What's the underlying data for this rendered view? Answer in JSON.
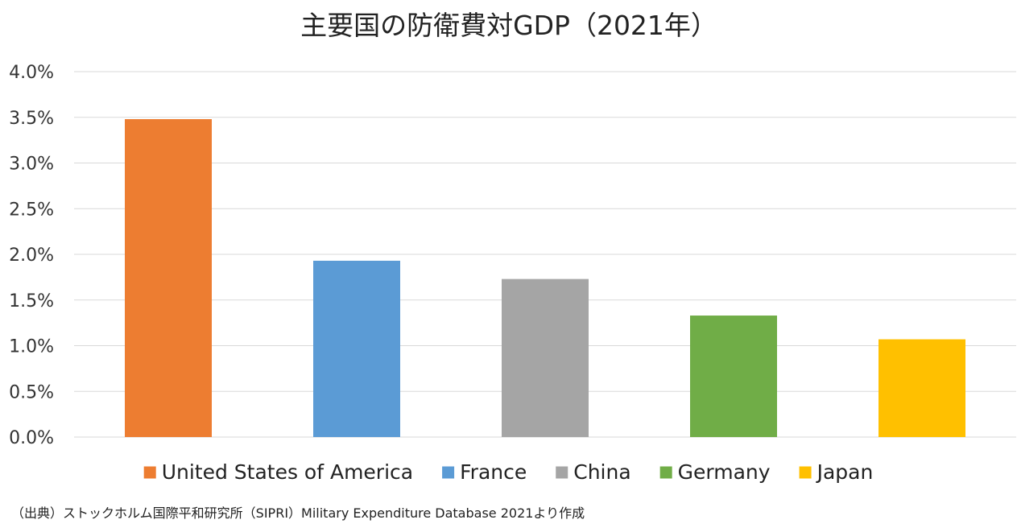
{
  "chart_data": {
    "type": "bar",
    "title": "主要国の防衛費対GDP（2021年）",
    "xlabel": "",
    "ylabel": "",
    "categories": [
      "United States of America",
      "France",
      "China",
      "Germany",
      "Japan"
    ],
    "series": [
      {
        "values": [
          3.48,
          1.93,
          1.73,
          1.33,
          1.07
        ]
      }
    ],
    "colors": [
      "#ED7D31",
      "#5B9BD5",
      "#A5A5A5",
      "#70AD47",
      "#FFC000"
    ],
    "ylim": [
      0,
      4.0
    ],
    "y_ticks": [
      "0.0%",
      "0.5%",
      "1.0%",
      "1.5%",
      "2.0%",
      "2.5%",
      "3.0%",
      "3.5%",
      "4.0%"
    ],
    "y_tick_values": [
      0,
      0.5,
      1.0,
      1.5,
      2.0,
      2.5,
      3.0,
      3.5,
      4.0
    ],
    "grid": true,
    "legend": {
      "placement": "bottom",
      "entries": [
        "United States of America",
        "France",
        "China",
        "Germany",
        "Japan"
      ]
    }
  },
  "source_note": "（出典）ストックホルム国際平和研究所（SIPRI）Military Expenditure Database 2021より作成"
}
